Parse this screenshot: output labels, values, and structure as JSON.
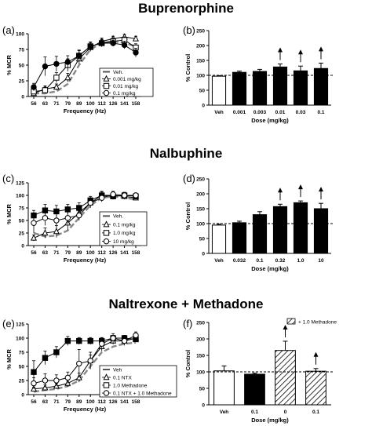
{
  "figure": {
    "rows": [
      {
        "title": "Buprenorphine",
        "left_label": "(a)",
        "right_label": "(b)"
      },
      {
        "title": "Nalbuphine",
        "left_label": "(c)",
        "right_label": "(d)"
      },
      {
        "title": "Naltrexone + Methadone",
        "left_label": "(e)",
        "right_label": "(f)"
      }
    ]
  },
  "chart_data": [
    {
      "id": "a",
      "type": "line",
      "x": [
        56,
        63,
        71,
        79,
        89,
        100,
        112,
        126,
        141,
        158
      ],
      "xlabel": "Frequency (Hz)",
      "ylabel": "% MCR",
      "ylim": [
        0,
        100
      ],
      "yticks": [
        0,
        25,
        50,
        75,
        100
      ],
      "legend_position": "bottom-right",
      "series": [
        {
          "name": "Veh.",
          "marker": "none",
          "dashed": true,
          "values": [
            5,
            5,
            8,
            20,
            50,
            75,
            85,
            88,
            85,
            80
          ],
          "err": [
            0,
            0,
            0,
            0,
            0,
            0,
            0,
            0,
            0,
            0
          ]
        },
        {
          "name": "0.001 mg/kg",
          "marker": "triangle",
          "values": [
            5,
            12,
            15,
            30,
            60,
            78,
            88,
            92,
            95,
            92
          ],
          "err": [
            3,
            5,
            5,
            7,
            8,
            6,
            5,
            4,
            4,
            4
          ]
        },
        {
          "name": "0.01 mg/kg",
          "marker": "square",
          "values": [
            8,
            10,
            30,
            50,
            65,
            80,
            85,
            88,
            90,
            78
          ],
          "err": [
            4,
            5,
            8,
            10,
            9,
            7,
            6,
            5,
            5,
            6
          ]
        },
        {
          "name": "0.1 mg/kg",
          "marker": "circle",
          "values": [
            15,
            48,
            52,
            55,
            65,
            80,
            85,
            85,
            82,
            70
          ],
          "err": [
            6,
            15,
            12,
            10,
            8,
            6,
            5,
            5,
            6,
            7
          ]
        }
      ]
    },
    {
      "id": "b",
      "type": "bar",
      "categories": [
        "Veh",
        "0.001",
        "0.003",
        "0.01",
        "0.03",
        "0.1"
      ],
      "values": [
        97,
        110,
        113,
        128,
        115,
        123
      ],
      "err": [
        2,
        4,
        7,
        10,
        16,
        18
      ],
      "fill": [
        "white",
        "black",
        "black",
        "black",
        "black",
        "black"
      ],
      "arrows": [
        false,
        false,
        false,
        true,
        true,
        true
      ],
      "ylim": [
        0,
        250
      ],
      "yticks": [
        0,
        50,
        100,
        150,
        200,
        250
      ],
      "refline": 100,
      "xlabel": "Dose (mg/kg)",
      "ylabel": "% Control"
    },
    {
      "id": "c",
      "type": "line",
      "x": [
        56,
        63,
        71,
        79,
        89,
        100,
        112,
        126,
        141,
        158
      ],
      "xlabel": "Frequency (Hz)",
      "ylabel": "% MCR",
      "ylim": [
        0,
        125
      ],
      "yticks": [
        0,
        25,
        50,
        75,
        100,
        125
      ],
      "legend_position": "bottom-right",
      "series": [
        {
          "name": "Veh.",
          "marker": "none",
          "dashed": true,
          "values": [
            25,
            18,
            20,
            30,
            55,
            80,
            95,
            98,
            95,
            92
          ],
          "err": [
            0,
            0,
            0,
            0,
            0,
            0,
            0,
            0,
            0,
            0
          ]
        },
        {
          "name": "0.1 mg/kg",
          "marker": "triangle",
          "values": [
            15,
            25,
            28,
            45,
            65,
            85,
            100,
            100,
            98,
            95
          ],
          "err": [
            6,
            10,
            12,
            14,
            12,
            10,
            8,
            8,
            6,
            5
          ]
        },
        {
          "name": "1.0 mg/kg",
          "marker": "square",
          "values": [
            60,
            70,
            68,
            72,
            75,
            90,
            100,
            98,
            100,
            98
          ],
          "err": [
            10,
            12,
            12,
            10,
            10,
            8,
            7,
            6,
            6,
            5
          ]
        },
        {
          "name": "10 mg/kg",
          "marker": "circle",
          "values": [
            45,
            55,
            50,
            55,
            60,
            85,
            95,
            102,
            100,
            100
          ],
          "err": [
            20,
            15,
            15,
            12,
            10,
            8,
            8,
            6,
            6,
            5
          ]
        }
      ]
    },
    {
      "id": "d",
      "type": "bar",
      "categories": [
        "Veh",
        "0.032",
        "0.1",
        "0.32",
        "1.0",
        "10"
      ],
      "values": [
        95,
        103,
        130,
        157,
        170,
        150
      ],
      "err": [
        3,
        5,
        10,
        8,
        6,
        18
      ],
      "fill": [
        "white",
        "black",
        "black",
        "black",
        "black",
        "black"
      ],
      "arrows": [
        false,
        false,
        false,
        true,
        true,
        true
      ],
      "ylim": [
        0,
        250
      ],
      "yticks": [
        0,
        50,
        100,
        150,
        200,
        250
      ],
      "refline": 100,
      "xlabel": "Dose (mg/kg)",
      "ylabel": "% Control"
    },
    {
      "id": "e",
      "type": "line",
      "x": [
        56,
        63,
        71,
        79,
        89,
        100,
        112,
        126,
        141,
        158
      ],
      "xlabel": "Frequency (Hz)",
      "ylabel": "% MCR",
      "ylim": [
        0,
        125
      ],
      "yticks": [
        0,
        25,
        50,
        75,
        100,
        125
      ],
      "legend_position": "bottom-right",
      "series": [
        {
          "name": "Veh",
          "marker": "none",
          "dashed": true,
          "values": [
            5,
            8,
            10,
            15,
            25,
            50,
            75,
            85,
            90,
            92
          ],
          "err": [
            0,
            0,
            0,
            0,
            0,
            0,
            0,
            0,
            0,
            0
          ]
        },
        {
          "name": "0.1 NTX",
          "marker": "triangle",
          "values": [
            10,
            12,
            15,
            20,
            30,
            60,
            85,
            95,
            95,
            100
          ],
          "err": [
            3,
            5,
            5,
            6,
            8,
            10,
            8,
            6,
            5,
            4
          ]
        },
        {
          "name": "1.0 Methadone",
          "marker": "square",
          "values": [
            40,
            65,
            75,
            95,
            95,
            95,
            95,
            100,
            100,
            98
          ],
          "err": [
            20,
            12,
            10,
            8,
            6,
            6,
            6,
            5,
            5,
            5
          ]
        },
        {
          "name": "0.1 NTX + 1.0 Methadone",
          "marker": "circle",
          "values": [
            20,
            25,
            25,
            30,
            55,
            60,
            90,
            100,
            95,
            105
          ],
          "err": [
            10,
            12,
            10,
            10,
            25,
            15,
            10,
            8,
            8,
            6
          ]
        }
      ]
    },
    {
      "id": "f",
      "type": "bar",
      "categories": [
        "Veh",
        "0.1",
        "0",
        "0.1"
      ],
      "values": [
        103,
        93,
        165,
        102
      ],
      "err": [
        15,
        3,
        28,
        8
      ],
      "fill": [
        "white",
        "black",
        "hatch",
        "hatch"
      ],
      "arrows": [
        false,
        false,
        true,
        true
      ],
      "ylim": [
        0,
        250
      ],
      "yticks": [
        0,
        50,
        100,
        150,
        200,
        250
      ],
      "refline": 100,
      "legend": "+ 1.0 Methadone",
      "xlabel": "Dose (mg/kg)",
      "ylabel": "% Control"
    }
  ]
}
